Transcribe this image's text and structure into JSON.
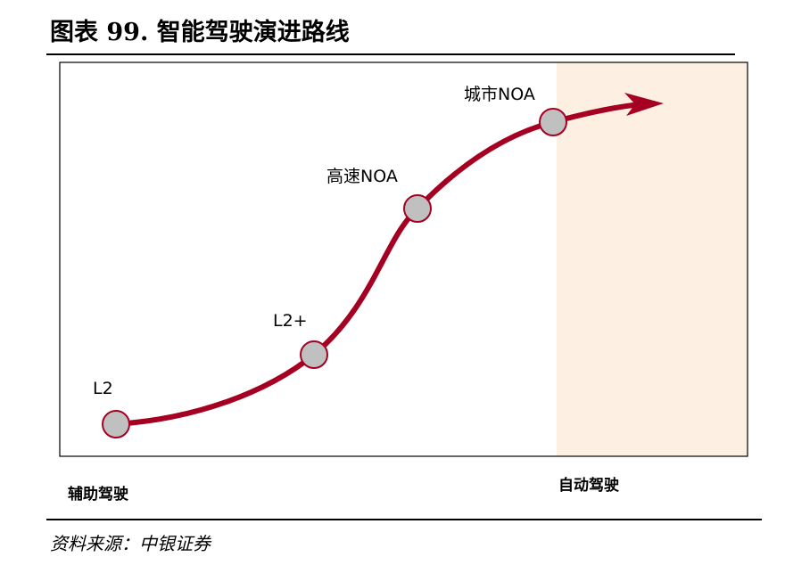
{
  "title": "图表 99. 智能驾驶演进路线",
  "stages": [
    {
      "label": "L2"
    },
    {
      "label": "L2+"
    },
    {
      "label": "高速NOA"
    },
    {
      "label": "城市NOA"
    }
  ],
  "bottom_left_label": "辅助驾驶",
  "bottom_right_label": "自动驾驶",
  "source": "资料来源：中银证券",
  "colors": {
    "curve": "#a50021",
    "node_fill": "#c0c0c0",
    "node_stroke": "#a50021",
    "highlight_region": "#fdefe2",
    "frame": "#000000"
  }
}
